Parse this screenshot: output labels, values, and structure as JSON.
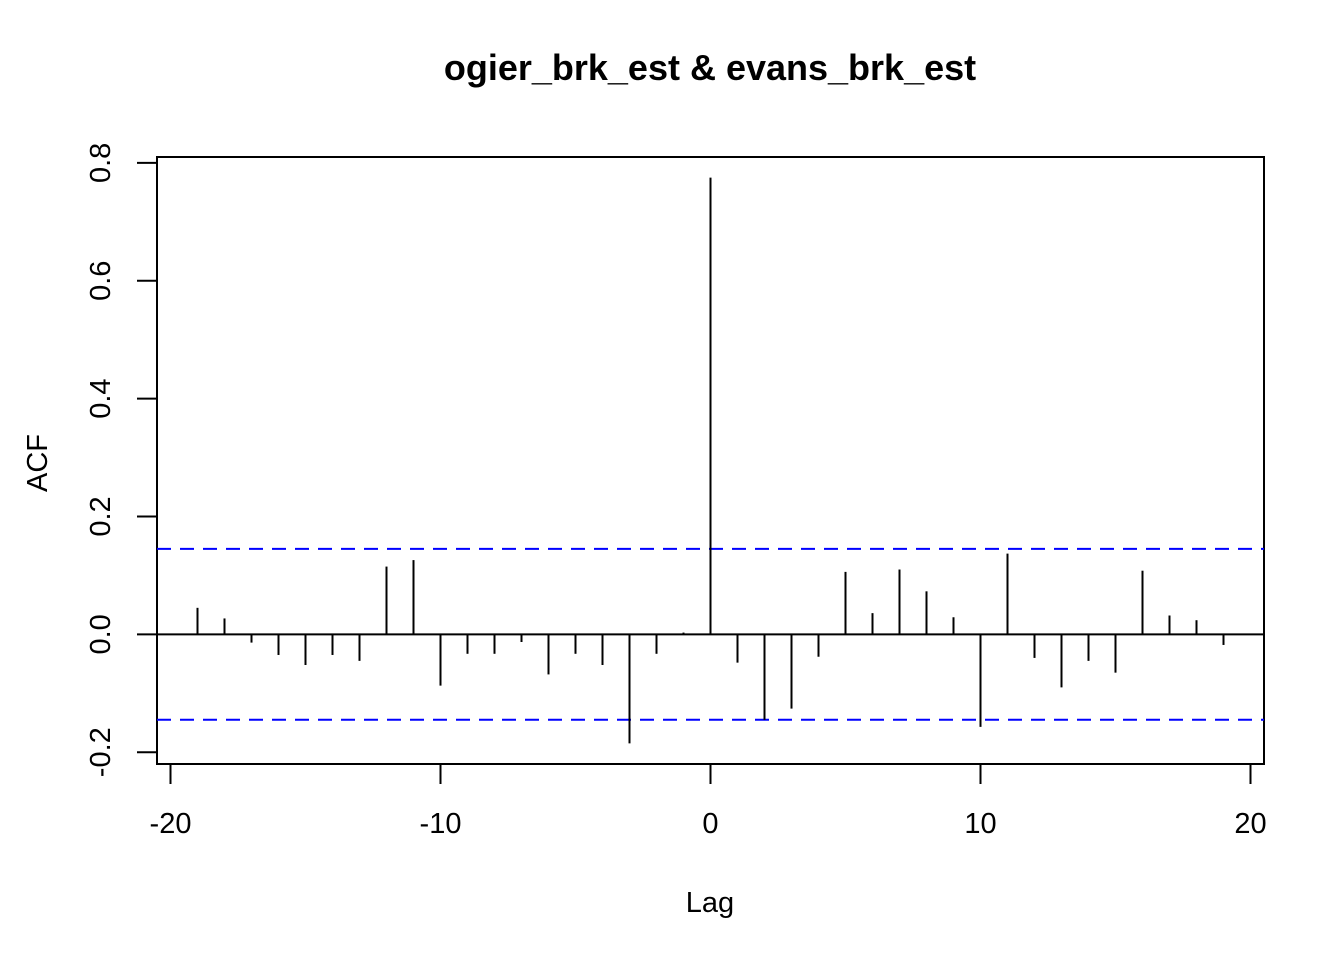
{
  "chart_data": {
    "type": "bar",
    "title": "ogier_brk_est & evans_brk_est",
    "xlabel": "Lag",
    "ylabel": "ACF",
    "xlim": [
      -20.5,
      20.5
    ],
    "ylim": [
      -0.22,
      0.81
    ],
    "x_ticks": [
      -20,
      -10,
      0,
      10,
      20
    ],
    "x_tick_labels": [
      "-20",
      "-10",
      "0",
      "10",
      "20"
    ],
    "y_ticks": [
      -0.2,
      0.0,
      0.2,
      0.4,
      0.6,
      0.8
    ],
    "y_tick_labels": [
      "-0.2",
      "0.0",
      "0.2",
      "0.4",
      "0.6",
      "0.8"
    ],
    "lags": [
      -19,
      -18,
      -17,
      -16,
      -15,
      -14,
      -13,
      -12,
      -11,
      -10,
      -9,
      -8,
      -7,
      -6,
      -5,
      -4,
      -3,
      -2,
      -1,
      0,
      1,
      2,
      3,
      4,
      5,
      6,
      7,
      8,
      9,
      10,
      11,
      12,
      13,
      14,
      15,
      16,
      17,
      18,
      19
    ],
    "values": [
      0.045,
      0.027,
      -0.014,
      -0.035,
      -0.052,
      -0.035,
      -0.045,
      0.115,
      0.126,
      -0.087,
      -0.033,
      -0.033,
      -0.013,
      -0.068,
      -0.033,
      -0.052,
      -0.185,
      -0.033,
      0.003,
      0.775,
      -0.048,
      -0.145,
      -0.126,
      -0.038,
      0.106,
      0.036,
      0.11,
      0.073,
      0.029,
      -0.157,
      0.137,
      -0.04,
      -0.09,
      -0.045,
      -0.065,
      0.108,
      0.032,
      0.024,
      -0.018
    ],
    "confidence_bound": 0.145,
    "colors": {
      "bars": "#000000",
      "bounds": "#0000ff",
      "zero_line": "#000000"
    },
    "grid": false
  }
}
